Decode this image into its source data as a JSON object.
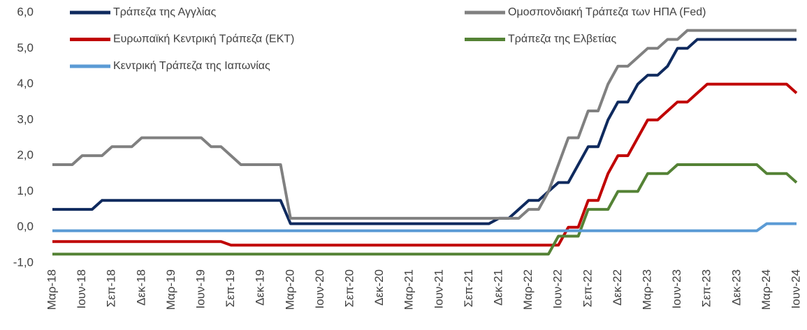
{
  "chart_data": {
    "type": "line",
    "categories": [
      "Μαρ-18",
      null,
      null,
      "Ιουν-18",
      null,
      null,
      "Σεπ-18",
      null,
      null,
      "Δεκ-18",
      null,
      null,
      "Μαρ-19",
      null,
      null,
      "Ιουν-19",
      null,
      null,
      "Σεπ-19",
      null,
      null,
      "Δεκ-19",
      null,
      null,
      "Μαρ-20",
      null,
      null,
      "Ιουν-20",
      null,
      null,
      "Σεπ-20",
      null,
      null,
      "Δεκ-20",
      null,
      null,
      "Μαρ-21",
      null,
      null,
      "Ιουν-21",
      null,
      null,
      "Σεπ-21",
      null,
      null,
      "Δεκ-21",
      null,
      null,
      "Μαρ-22",
      null,
      null,
      "Ιουν-22",
      null,
      null,
      "Σεπ-22",
      null,
      null,
      "Δεκ-22",
      null,
      null,
      "Μαρ-23",
      null,
      null,
      "Ιουν-23",
      null,
      null,
      "Σεπ-23",
      null,
      null,
      "Δεκ-23",
      null,
      null,
      "Μαρ-24",
      null,
      null,
      "Ιουν-24"
    ],
    "series": [
      {
        "name": "Τράπεζα της Αγγλίας",
        "color": "#0f2a5e",
        "values": [
          0.5,
          0.5,
          0.5,
          0.5,
          0.5,
          0.75,
          0.75,
          0.75,
          0.75,
          0.75,
          0.75,
          0.75,
          0.75,
          0.75,
          0.75,
          0.75,
          0.75,
          0.75,
          0.75,
          0.75,
          0.75,
          0.75,
          0.75,
          0.75,
          0.1,
          0.1,
          0.1,
          0.1,
          0.1,
          0.1,
          0.1,
          0.1,
          0.1,
          0.1,
          0.1,
          0.1,
          0.1,
          0.1,
          0.1,
          0.1,
          0.1,
          0.1,
          0.1,
          0.1,
          0.1,
          0.25,
          0.25,
          0.5,
          0.75,
          0.75,
          1.0,
          1.25,
          1.25,
          1.75,
          2.25,
          2.25,
          3.0,
          3.5,
          3.5,
          4.0,
          4.25,
          4.25,
          4.5,
          5.0,
          5.0,
          5.25,
          5.25,
          5.25,
          5.25,
          5.25,
          5.25,
          5.25,
          5.25,
          5.25,
          5.25,
          5.25
        ]
      },
      {
        "name": "Ομοσπονδιακή Τράπεζα των ΗΠΑ (Fed)",
        "color": "#808080",
        "values": [
          1.75,
          1.75,
          1.75,
          2.0,
          2.0,
          2.0,
          2.25,
          2.25,
          2.25,
          2.5,
          2.5,
          2.5,
          2.5,
          2.5,
          2.5,
          2.5,
          2.25,
          2.25,
          2.0,
          1.75,
          1.75,
          1.75,
          1.75,
          1.75,
          0.25,
          0.25,
          0.25,
          0.25,
          0.25,
          0.25,
          0.25,
          0.25,
          0.25,
          0.25,
          0.25,
          0.25,
          0.25,
          0.25,
          0.25,
          0.25,
          0.25,
          0.25,
          0.25,
          0.25,
          0.25,
          0.25,
          0.25,
          0.25,
          0.5,
          0.5,
          1.0,
          1.75,
          2.5,
          2.5,
          3.25,
          3.25,
          4.0,
          4.5,
          4.5,
          4.75,
          5.0,
          5.0,
          5.25,
          5.25,
          5.5,
          5.5,
          5.5,
          5.5,
          5.5,
          5.5,
          5.5,
          5.5,
          5.5,
          5.5,
          5.5,
          5.5
        ]
      },
      {
        "name": "Ευρωπαϊκή Κεντρική Τράπεζα (ΕΚΤ)",
        "color": "#c00000",
        "values": [
          -0.4,
          -0.4,
          -0.4,
          -0.4,
          -0.4,
          -0.4,
          -0.4,
          -0.4,
          -0.4,
          -0.4,
          -0.4,
          -0.4,
          -0.4,
          -0.4,
          -0.4,
          -0.4,
          -0.4,
          -0.4,
          -0.5,
          -0.5,
          -0.5,
          -0.5,
          -0.5,
          -0.5,
          -0.5,
          -0.5,
          -0.5,
          -0.5,
          -0.5,
          -0.5,
          -0.5,
          -0.5,
          -0.5,
          -0.5,
          -0.5,
          -0.5,
          -0.5,
          -0.5,
          -0.5,
          -0.5,
          -0.5,
          -0.5,
          -0.5,
          -0.5,
          -0.5,
          -0.5,
          -0.5,
          -0.5,
          -0.5,
          -0.5,
          -0.5,
          -0.5,
          0.0,
          0.0,
          0.75,
          0.75,
          1.5,
          2.0,
          2.0,
          2.5,
          3.0,
          3.0,
          3.25,
          3.5,
          3.5,
          3.75,
          4.0,
          4.0,
          4.0,
          4.0,
          4.0,
          4.0,
          4.0,
          4.0,
          4.0,
          3.75
        ]
      },
      {
        "name": "Τράπεζα της Ελβετίας",
        "color": "#548235",
        "values": [
          -0.75,
          -0.75,
          -0.75,
          -0.75,
          -0.75,
          -0.75,
          -0.75,
          -0.75,
          -0.75,
          -0.75,
          -0.75,
          -0.75,
          -0.75,
          -0.75,
          -0.75,
          -0.75,
          -0.75,
          -0.75,
          -0.75,
          -0.75,
          -0.75,
          -0.75,
          -0.75,
          -0.75,
          -0.75,
          -0.75,
          -0.75,
          -0.75,
          -0.75,
          -0.75,
          -0.75,
          -0.75,
          -0.75,
          -0.75,
          -0.75,
          -0.75,
          -0.75,
          -0.75,
          -0.75,
          -0.75,
          -0.75,
          -0.75,
          -0.75,
          -0.75,
          -0.75,
          -0.75,
          -0.75,
          -0.75,
          -0.75,
          -0.75,
          -0.75,
          -0.25,
          -0.25,
          -0.25,
          0.5,
          0.5,
          0.5,
          1.0,
          1.0,
          1.0,
          1.5,
          1.5,
          1.5,
          1.75,
          1.75,
          1.75,
          1.75,
          1.75,
          1.75,
          1.75,
          1.75,
          1.75,
          1.5,
          1.5,
          1.5,
          1.25
        ]
      },
      {
        "name": "Κεντρική Τράπεζα της Ιαπωνίας",
        "color": "#5b9bd5",
        "values": [
          -0.1,
          -0.1,
          -0.1,
          -0.1,
          -0.1,
          -0.1,
          -0.1,
          -0.1,
          -0.1,
          -0.1,
          -0.1,
          -0.1,
          -0.1,
          -0.1,
          -0.1,
          -0.1,
          -0.1,
          -0.1,
          -0.1,
          -0.1,
          -0.1,
          -0.1,
          -0.1,
          -0.1,
          -0.1,
          -0.1,
          -0.1,
          -0.1,
          -0.1,
          -0.1,
          -0.1,
          -0.1,
          -0.1,
          -0.1,
          -0.1,
          -0.1,
          -0.1,
          -0.1,
          -0.1,
          -0.1,
          -0.1,
          -0.1,
          -0.1,
          -0.1,
          -0.1,
          -0.1,
          -0.1,
          -0.1,
          -0.1,
          -0.1,
          -0.1,
          -0.1,
          -0.1,
          -0.1,
          -0.1,
          -0.1,
          -0.1,
          -0.1,
          -0.1,
          -0.1,
          -0.1,
          -0.1,
          -0.1,
          -0.1,
          -0.1,
          -0.1,
          -0.1,
          -0.1,
          -0.1,
          -0.1,
          -0.1,
          -0.1,
          0.1,
          0.1,
          0.1,
          0.1
        ]
      }
    ],
    "ylim": [
      -1.0,
      6.0
    ],
    "yticks": [
      {
        "value": -1.0,
        "label": "-1,0"
      },
      {
        "value": 0.0,
        "label": "0,0"
      },
      {
        "value": 1.0,
        "label": "1,0"
      },
      {
        "value": 2.0,
        "label": "2,0"
      },
      {
        "value": 3.0,
        "label": "3,0"
      },
      {
        "value": 4.0,
        "label": "4,0"
      },
      {
        "value": 5.0,
        "label": "5,0"
      },
      {
        "value": 6.0,
        "label": "6,0"
      }
    ],
    "legend": "top"
  }
}
